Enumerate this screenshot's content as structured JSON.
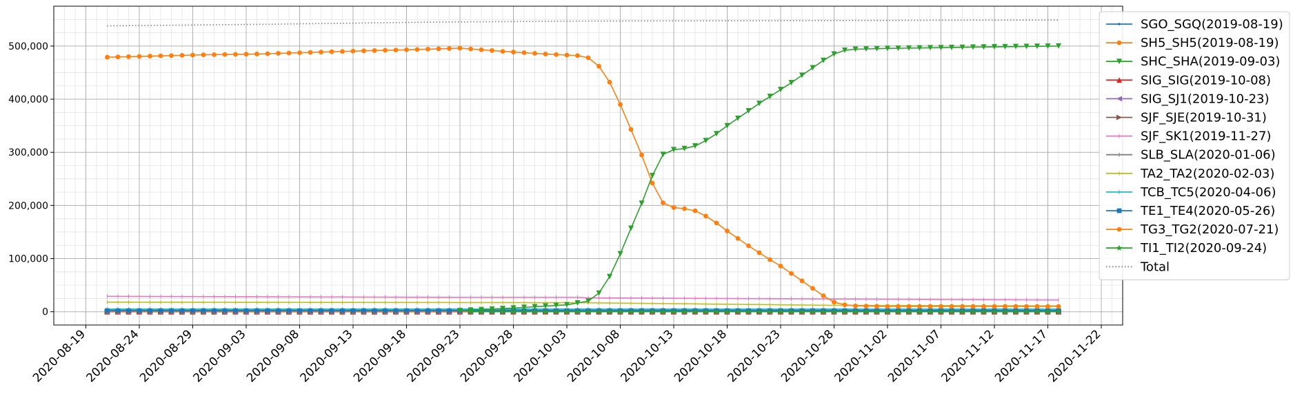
{
  "chart_data": {
    "type": "line",
    "title": "",
    "xlabel": "",
    "ylabel": "",
    "x_axis": {
      "type": "date",
      "range": [
        "2020-08-16",
        "2020-11-24"
      ],
      "tick_labels": [
        "2020-08-19",
        "2020-08-24",
        "2020-08-29",
        "2020-09-03",
        "2020-09-08",
        "2020-09-13",
        "2020-09-18",
        "2020-09-23",
        "2020-09-28",
        "2020-10-03",
        "2020-10-08",
        "2020-10-13",
        "2020-10-18",
        "2020-10-23",
        "2020-10-28",
        "2020-11-02",
        "2020-11-07",
        "2020-11-12",
        "2020-11-17",
        "2020-11-22"
      ]
    },
    "y_axis": {
      "range": [
        -25000,
        575000
      ],
      "tick_values": [
        0,
        100000,
        200000,
        300000,
        400000,
        500000
      ],
      "tick_labels": [
        "0",
        "100,000",
        "200,000",
        "300,000",
        "400,000",
        "500,000"
      ]
    },
    "grid": true,
    "legend_position": "right",
    "series": [
      {
        "name": "SGO_SGQ(2019-08-19)",
        "color": "#1f77b4",
        "marker": "dot",
        "points": [
          [
            "2020-08-21",
            0
          ],
          [
            "2020-11-18",
            0
          ]
        ]
      },
      {
        "name": "SH5_SH5(2019-08-19)",
        "color": "#ff7f0e",
        "marker": "circle",
        "points": [
          [
            "2020-08-21",
            479000
          ],
          [
            "2020-08-25",
            481000
          ],
          [
            "2020-08-30",
            483500
          ],
          [
            "2020-09-04",
            485000
          ],
          [
            "2020-09-09",
            488000
          ],
          [
            "2020-09-14",
            491000
          ],
          [
            "2020-09-19",
            493500
          ],
          [
            "2020-09-23",
            496000
          ],
          [
            "2020-09-27",
            490000
          ],
          [
            "2020-10-01",
            485000
          ],
          [
            "2020-10-04",
            482000
          ],
          [
            "2020-10-05",
            478000
          ],
          [
            "2020-10-06",
            462000
          ],
          [
            "2020-10-07",
            432000
          ],
          [
            "2020-10-08",
            390000
          ],
          [
            "2020-10-09",
            343000
          ],
          [
            "2020-10-10",
            295000
          ],
          [
            "2020-10-11",
            242000
          ],
          [
            "2020-10-12",
            205000
          ],
          [
            "2020-10-13",
            196000
          ],
          [
            "2020-10-14",
            194000
          ],
          [
            "2020-10-15",
            190000
          ],
          [
            "2020-10-16",
            180000
          ],
          [
            "2020-10-17",
            167000
          ],
          [
            "2020-10-18",
            152000
          ],
          [
            "2020-10-19",
            138000
          ],
          [
            "2020-10-20",
            124000
          ],
          [
            "2020-10-21",
            111000
          ],
          [
            "2020-10-22",
            98000
          ],
          [
            "2020-10-23",
            86000
          ],
          [
            "2020-10-24",
            72000
          ],
          [
            "2020-10-25",
            58000
          ],
          [
            "2020-10-26",
            44000
          ],
          [
            "2020-10-27",
            30000
          ],
          [
            "2020-10-28",
            18000
          ],
          [
            "2020-10-29",
            13000
          ],
          [
            "2020-10-30",
            11000
          ],
          [
            "2020-11-02",
            10000
          ],
          [
            "2020-11-18",
            10000
          ]
        ]
      },
      {
        "name": "SHC_SHA(2019-09-03)",
        "color": "#2ca02c",
        "marker": "triangle-down",
        "points": [
          [
            "2020-09-23",
            2000
          ],
          [
            "2020-09-28",
            7000
          ],
          [
            "2020-10-03",
            13000
          ],
          [
            "2020-10-05",
            20000
          ],
          [
            "2020-10-06",
            35000
          ],
          [
            "2020-10-07",
            66000
          ],
          [
            "2020-10-08",
            109000
          ],
          [
            "2020-10-09",
            157000
          ],
          [
            "2020-10-10",
            204000
          ],
          [
            "2020-10-11",
            256000
          ],
          [
            "2020-10-12",
            296000
          ],
          [
            "2020-10-13",
            305000
          ],
          [
            "2020-10-14",
            307000
          ],
          [
            "2020-10-15",
            312000
          ],
          [
            "2020-10-16",
            322000
          ],
          [
            "2020-10-17",
            335000
          ],
          [
            "2020-10-18",
            350000
          ],
          [
            "2020-10-19",
            364000
          ],
          [
            "2020-10-20",
            378000
          ],
          [
            "2020-10-21",
            392000
          ],
          [
            "2020-10-22",
            405000
          ],
          [
            "2020-10-23",
            418000
          ],
          [
            "2020-10-24",
            431000
          ],
          [
            "2020-10-25",
            445000
          ],
          [
            "2020-10-26",
            459000
          ],
          [
            "2020-10-27",
            473000
          ],
          [
            "2020-10-28",
            485000
          ],
          [
            "2020-10-29",
            492000
          ],
          [
            "2020-10-30",
            494000
          ],
          [
            "2020-11-02",
            495500
          ],
          [
            "2020-11-07",
            497000
          ],
          [
            "2020-11-12",
            498500
          ],
          [
            "2020-11-18",
            500000
          ]
        ]
      },
      {
        "name": "SIG_SIG(2019-10-08)",
        "color": "#d62728",
        "marker": "triangle-up",
        "points": [
          [
            "2020-08-21",
            0
          ],
          [
            "2020-11-18",
            0
          ]
        ]
      },
      {
        "name": "SIG_SJ1(2019-10-23)",
        "color": "#9467bd",
        "marker": "triangle-left",
        "points": [
          [
            "2020-08-21",
            0
          ],
          [
            "2020-11-18",
            0
          ]
        ]
      },
      {
        "name": "SJF_SJE(2019-10-31)",
        "color": "#8c564b",
        "marker": "triangle-right",
        "points": [
          [
            "2020-08-21",
            0
          ],
          [
            "2020-11-18",
            0
          ]
        ]
      },
      {
        "name": "SJF_SK1(2019-11-27)",
        "color": "#e377c2",
        "marker": "tick",
        "points": [
          [
            "2020-08-21",
            29000
          ],
          [
            "2020-09-23",
            27000
          ],
          [
            "2020-10-04",
            27000
          ],
          [
            "2020-10-05",
            26000
          ],
          [
            "2020-10-28",
            24000
          ],
          [
            "2020-11-18",
            22000
          ]
        ]
      },
      {
        "name": "SLB_SLA(2020-01-06)",
        "color": "#7f7f7f",
        "marker": "tick",
        "points": [
          [
            "2020-08-21",
            3000
          ],
          [
            "2020-11-18",
            3000
          ]
        ]
      },
      {
        "name": "TA2_TA2(2020-02-03)",
        "color": "#bcbd22",
        "marker": "tick",
        "points": [
          [
            "2020-08-21",
            18000
          ],
          [
            "2020-10-04",
            17000
          ],
          [
            "2020-10-28",
            12000
          ],
          [
            "2020-11-18",
            11000
          ]
        ]
      },
      {
        "name": "TCB_TC5(2020-04-06)",
        "color": "#17becf",
        "marker": "tick",
        "points": [
          [
            "2020-08-21",
            5000
          ],
          [
            "2020-11-18",
            5000
          ]
        ]
      },
      {
        "name": "TE1_TE4(2020-05-26)",
        "color": "#1f77b4",
        "marker": "square",
        "points": [
          [
            "2020-08-21",
            2000
          ],
          [
            "2020-11-18",
            2000
          ]
        ]
      },
      {
        "name": "TG3_TG2(2020-07-21)",
        "color": "#ff7f0e",
        "marker": "hexagon",
        "points": [
          [
            "2020-08-21",
            1000
          ],
          [
            "2020-11-18",
            1000
          ]
        ]
      },
      {
        "name": "TI1_TI2(2020-09-24)",
        "color": "#2ca02c",
        "marker": "star",
        "points": [
          [
            "2020-09-24",
            0
          ],
          [
            "2020-11-18",
            0
          ]
        ]
      },
      {
        "name": "Total",
        "color": "#7f7f7f",
        "marker": "none",
        "dotted": true,
        "points": [
          [
            "2020-08-21",
            538000
          ],
          [
            "2020-09-05",
            541000
          ],
          [
            "2020-09-20",
            545000
          ],
          [
            "2020-10-05",
            547000
          ],
          [
            "2020-11-18",
            549000
          ]
        ]
      }
    ]
  }
}
